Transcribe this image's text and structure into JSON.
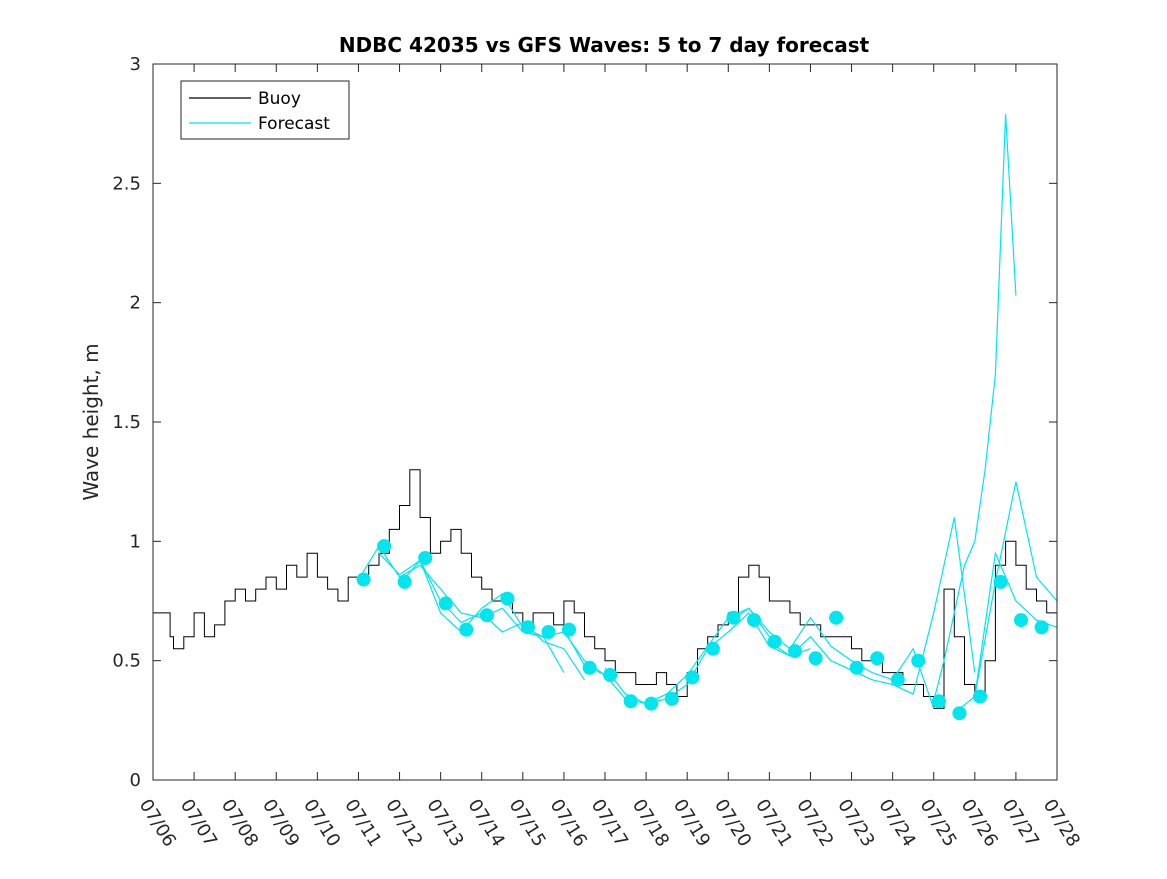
{
  "chart_data": {
    "type": "line",
    "title": "NDBC 42035 vs GFS Waves: 5 to 7 day forecast",
    "xlabel": "",
    "ylabel": "Wave height, m",
    "ylim": [
      0,
      3
    ],
    "yticks": [
      0,
      0.5,
      1,
      1.5,
      2,
      2.5,
      3
    ],
    "ytick_labels": [
      "0",
      "0.5",
      "1",
      "1.5",
      "2",
      "2.5",
      "3"
    ],
    "xlim": [
      "07/06",
      "07/28"
    ],
    "xtick_labels": [
      "07/06",
      "07/07",
      "07/08",
      "07/09",
      "07/10",
      "07/11",
      "07/12",
      "07/13",
      "07/14",
      "07/15",
      "07/16",
      "07/17",
      "07/18",
      "07/19",
      "07/20",
      "07/21",
      "07/22",
      "07/23",
      "07/24",
      "07/25",
      "07/26",
      "07/27",
      "07/28"
    ],
    "legend": {
      "placement": "top-left",
      "entries": [
        {
          "label": "Buoy",
          "color": "#000000"
        },
        {
          "label": "Forecast",
          "color": "#00e5ee"
        }
      ]
    },
    "grid": false,
    "series": [
      {
        "name": "Buoy",
        "color": "#000000",
        "style": "stepped-line",
        "x": [
          "07/06 00:00",
          "07/06 10:00",
          "07/06 12:00",
          "07/06 18:00",
          "07/07 00:00",
          "07/07 06:00",
          "07/07 12:00",
          "07/07 18:00",
          "07/08 00:00",
          "07/08 06:00",
          "07/08 12:00",
          "07/08 18:00",
          "07/09 00:00",
          "07/09 06:00",
          "07/09 12:00",
          "07/09 18:00",
          "07/10 00:00",
          "07/10 06:00",
          "07/10 12:00",
          "07/10 18:00",
          "07/11 00:00",
          "07/11 06:00",
          "07/11 12:00",
          "07/11 18:00",
          "07/12 00:00",
          "07/12 06:00",
          "07/12 12:00",
          "07/12 18:00",
          "07/13 00:00",
          "07/13 06:00",
          "07/13 12:00",
          "07/13 18:00",
          "07/14 00:00",
          "07/14 06:00",
          "07/14 12:00",
          "07/14 18:00",
          "07/15 00:00",
          "07/15 06:00",
          "07/15 12:00",
          "07/15 18:00",
          "07/16 00:00",
          "07/16 06:00",
          "07/16 12:00",
          "07/16 18:00",
          "07/17 00:00",
          "07/17 06:00",
          "07/17 12:00",
          "07/17 18:00",
          "07/18 00:00",
          "07/18 06:00",
          "07/18 12:00",
          "07/18 18:00",
          "07/19 00:00",
          "07/19 06:00",
          "07/19 12:00",
          "07/19 18:00",
          "07/20 00:00",
          "07/20 06:00",
          "07/20 12:00",
          "07/20 18:00",
          "07/21 00:00",
          "07/21 06:00",
          "07/21 12:00",
          "07/21 18:00",
          "07/22 00:00",
          "07/22 06:00",
          "07/22 12:00",
          "07/22 18:00",
          "07/23 00:00",
          "07/23 06:00",
          "07/23 12:00",
          "07/23 18:00",
          "07/24 00:00",
          "07/24 06:00",
          "07/24 12:00",
          "07/24 18:00",
          "07/25 00:00",
          "07/25 06:00",
          "07/25 12:00",
          "07/25 18:00",
          "07/26 00:00",
          "07/26 06:00",
          "07/26 12:00",
          "07/26 18:00",
          "07/27 00:00",
          "07/27 06:00",
          "07/27 12:00",
          "07/27 18:00",
          "07/28 00:00"
        ],
        "y": [
          0.7,
          0.6,
          0.55,
          0.6,
          0.7,
          0.6,
          0.65,
          0.75,
          0.8,
          0.75,
          0.8,
          0.85,
          0.8,
          0.9,
          0.85,
          0.95,
          0.85,
          0.8,
          0.75,
          0.85,
          0.85,
          0.9,
          0.95,
          1.05,
          1.15,
          1.3,
          1.1,
          0.95,
          1.0,
          1.05,
          0.95,
          0.85,
          0.8,
          0.75,
          0.75,
          0.7,
          0.65,
          0.7,
          0.7,
          0.65,
          0.75,
          0.7,
          0.6,
          0.55,
          0.5,
          0.45,
          0.45,
          0.4,
          0.4,
          0.45,
          0.4,
          0.35,
          0.45,
          0.55,
          0.6,
          0.65,
          0.7,
          0.85,
          0.9,
          0.85,
          0.75,
          0.75,
          0.7,
          0.65,
          0.65,
          0.6,
          0.6,
          0.6,
          0.55,
          0.5,
          0.5,
          0.45,
          0.45,
          0.4,
          0.4,
          0.35,
          0.3,
          0.8,
          0.6,
          0.4,
          0.35,
          0.5,
          0.9,
          1.0,
          0.9,
          0.8,
          0.75,
          0.7,
          0.7
        ]
      },
      {
        "name": "Forecast",
        "color": "#00e5ee",
        "style": "lines",
        "runs": [
          {
            "x": [
              "07/11 00:00",
              "07/11 12:00",
              "07/12 00:00",
              "07/12 12:00",
              "07/13 00:00",
              "07/13 12:00",
              "07/14 00:00",
              "07/14 12:00",
              "07/15 00:00",
              "07/15 12:00",
              "07/16 00:00"
            ],
            "y": [
              0.84,
              0.98,
              0.85,
              0.9,
              0.8,
              0.7,
              0.68,
              0.72,
              0.62,
              0.6,
              0.45
            ]
          },
          {
            "x": [
              "07/11 12:00",
              "07/12 00:00",
              "07/12 12:00",
              "07/13 00:00",
              "07/13 12:00",
              "07/14 00:00",
              "07/14 12:00",
              "07/15 00:00",
              "07/15 12:00",
              "07/16 00:00",
              "07/16 12:00"
            ],
            "y": [
              0.95,
              0.86,
              0.92,
              0.75,
              0.66,
              0.7,
              0.62,
              0.66,
              0.58,
              0.55,
              0.42
            ]
          },
          {
            "x": [
              "07/12 00:00",
              "07/12 12:00",
              "07/13 00:00",
              "07/13 12:00",
              "07/14 00:00",
              "07/14 12:00",
              "07/15 00:00",
              "07/15 12:00",
              "07/16 00:00",
              "07/16 12:00",
              "07/17 00:00"
            ],
            "y": [
              0.82,
              0.92,
              0.7,
              0.62,
              0.72,
              0.78,
              0.64,
              0.6,
              0.62,
              0.5,
              0.44
            ]
          },
          {
            "x": [
              "07/16 00:00",
              "07/16 12:00",
              "07/17 00:00",
              "07/17 12:00",
              "07/18 00:00",
              "07/18 12:00",
              "07/19 00:00",
              "07/19 12:00",
              "07/20 00:00",
              "07/20 12:00",
              "07/21 00:00"
            ],
            "y": [
              0.63,
              0.48,
              0.44,
              0.34,
              0.32,
              0.36,
              0.44,
              0.56,
              0.68,
              0.72,
              0.6
            ]
          },
          {
            "x": [
              "07/17 00:00",
              "07/17 12:00",
              "07/18 00:00",
              "07/18 12:00",
              "07/19 00:00",
              "07/19 12:00",
              "07/20 00:00",
              "07/20 12:00",
              "07/21 00:00",
              "07/21 12:00",
              "07/22 00:00"
            ],
            "y": [
              0.47,
              0.36,
              0.32,
              0.34,
              0.4,
              0.55,
              0.62,
              0.7,
              0.56,
              0.52,
              0.55
            ]
          },
          {
            "x": [
              "07/20 00:00",
              "07/20 12:00",
              "07/21 00:00",
              "07/21 12:00",
              "07/22 00:00",
              "07/22 12:00",
              "07/23 00:00",
              "07/23 12:00",
              "07/24 00:00",
              "07/24 12:00",
              "07/25 00:00"
            ],
            "y": [
              0.66,
              0.72,
              0.62,
              0.55,
              0.68,
              0.56,
              0.5,
              0.45,
              0.42,
              0.55,
              0.3
            ]
          },
          {
            "x": [
              "07/21 00:00",
              "07/21 12:00",
              "07/22 00:00",
              "07/22 12:00",
              "07/23 00:00",
              "07/23 12:00",
              "07/24 00:00",
              "07/24 12:00",
              "07/25 00:00",
              "07/25 12:00",
              "07/26 00:00"
            ],
            "y": [
              0.58,
              0.52,
              0.6,
              0.5,
              0.46,
              0.42,
              0.4,
              0.36,
              0.7,
              1.1,
              0.45
            ]
          },
          {
            "x": [
              "07/25 00:00",
              "07/25 06:00",
              "07/25 12:00",
              "07/25 18:00",
              "07/26 00:00",
              "07/26 06:00",
              "07/26 12:00",
              "07/26 18:00",
              "07/27 00:00"
            ],
            "y": [
              0.33,
              0.5,
              0.7,
              0.9,
              1.0,
              1.3,
              1.7,
              2.79,
              2.03
            ]
          },
          {
            "x": [
              "07/25 12:00",
              "07/26 00:00",
              "07/26 12:00",
              "07/27 00:00",
              "07/27 12:00",
              "07/28 00:00"
            ],
            "y": [
              0.28,
              0.35,
              0.83,
              1.25,
              0.85,
              0.75
            ]
          },
          {
            "x": [
              "07/26 00:00",
              "07/26 12:00",
              "07/27 00:00",
              "07/27 12:00",
              "07/28 00:00"
            ],
            "y": [
              0.35,
              0.95,
              0.75,
              0.67,
              0.64
            ]
          }
        ],
        "markers_x": [
          "07/11 03:00",
          "07/11 15:00",
          "07/12 03:00",
          "07/12 15:00",
          "07/13 03:00",
          "07/13 15:00",
          "07/14 03:00",
          "07/14 15:00",
          "07/15 03:00",
          "07/15 15:00",
          "07/16 03:00",
          "07/16 15:00",
          "07/17 03:00",
          "07/17 15:00",
          "07/18 03:00",
          "07/18 15:00",
          "07/19 03:00",
          "07/19 15:00",
          "07/20 03:00",
          "07/20 15:00",
          "07/21 03:00",
          "07/21 15:00",
          "07/22 03:00",
          "07/22 15:00",
          "07/23 03:00",
          "07/23 15:00",
          "07/24 03:00",
          "07/24 15:00",
          "07/25 03:00",
          "07/25 15:00",
          "07/26 03:00",
          "07/26 15:00",
          "07/27 03:00",
          "07/27 15:00"
        ],
        "markers_y": [
          0.84,
          0.98,
          0.83,
          0.93,
          0.74,
          0.63,
          0.69,
          0.76,
          0.64,
          0.62,
          0.63,
          0.47,
          0.44,
          0.33,
          0.32,
          0.34,
          0.43,
          0.55,
          0.68,
          0.67,
          0.58,
          0.54,
          0.51,
          0.68,
          0.47,
          0.51,
          0.42,
          0.5,
          0.33,
          0.28,
          0.35,
          0.83,
          0.67,
          0.64
        ]
      }
    ]
  }
}
